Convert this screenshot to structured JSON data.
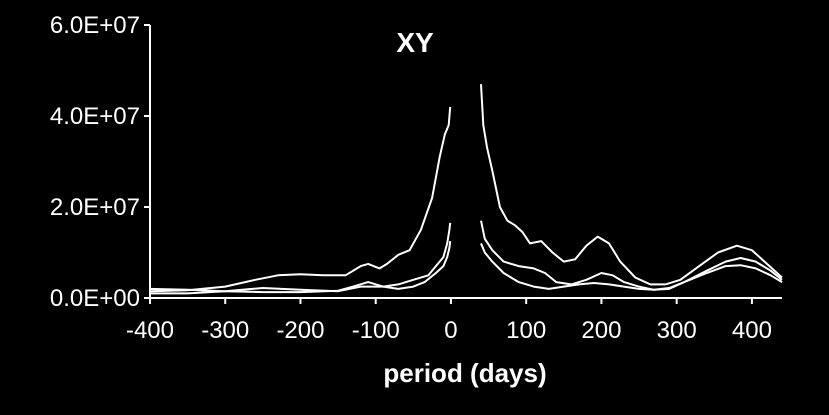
{
  "chart_data": {
    "type": "line",
    "title": "XY",
    "xlabel": "period (days)",
    "ylabel": "",
    "xlim": [
      -400,
      440
    ],
    "ylim": [
      0,
      60000000
    ],
    "x_ticks": [
      -400,
      -300,
      -200,
      -100,
      0,
      100,
      200,
      300,
      400
    ],
    "x_tick_labels": [
      "-400",
      "-300",
      "-200",
      "-100",
      "0",
      "100",
      "200",
      "300",
      "400"
    ],
    "y_ticks": [
      0,
      20000000,
      40000000,
      60000000
    ],
    "y_tick_labels": [
      "0.0E+00",
      "2.0E+07",
      "4.0E+07",
      "6.0E+07"
    ],
    "grid": false,
    "line_color": "#ffffff",
    "background": "#000000",
    "series": [
      {
        "segments": [
          [
            [
              -400,
              1500000
            ],
            [
              -350,
              1700000
            ],
            [
              -300,
              2500000
            ],
            [
              -260,
              4000000
            ],
            [
              -230,
              5000000
            ],
            [
              -200,
              5200000
            ],
            [
              -170,
              5000000
            ],
            [
              -140,
              5000000
            ],
            [
              -120,
              7000000
            ],
            [
              -110,
              7500000
            ],
            [
              -95,
              6500000
            ],
            [
              -85,
              7500000
            ],
            [
              -70,
              9500000
            ],
            [
              -55,
              10500000
            ],
            [
              -40,
              15000000
            ],
            [
              -25,
              22000000
            ],
            [
              -15,
              31000000
            ],
            [
              -8,
              36000000
            ],
            [
              -3,
              38000000
            ],
            [
              -1,
              42000000
            ]
          ],
          [
            [
              40,
              47000000
            ],
            [
              43,
              38000000
            ],
            [
              48,
              33000000
            ],
            [
              55,
              28000000
            ],
            [
              65,
              20000000
            ],
            [
              75,
              17000000
            ],
            [
              85,
              16000000
            ],
            [
              95,
              14500000
            ],
            [
              105,
              12000000
            ],
            [
              120,
              12500000
            ],
            [
              135,
              10000000
            ],
            [
              150,
              8000000
            ],
            [
              165,
              8500000
            ],
            [
              180,
              11500000
            ],
            [
              195,
              13500000
            ],
            [
              210,
              12000000
            ],
            [
              225,
              8000000
            ],
            [
              245,
              4500000
            ],
            [
              265,
              3000000
            ],
            [
              285,
              3000000
            ],
            [
              305,
              4000000
            ],
            [
              330,
              7000000
            ],
            [
              355,
              10000000
            ],
            [
              380,
              11500000
            ],
            [
              400,
              10500000
            ],
            [
              420,
              7500000
            ],
            [
              440,
              4500000
            ]
          ]
        ]
      },
      {
        "segments": [
          [
            [
              -400,
              1000000
            ],
            [
              -350,
              1000000
            ],
            [
              -300,
              1500000
            ],
            [
              -250,
              2200000
            ],
            [
              -200,
              1800000
            ],
            [
              -150,
              1500000
            ],
            [
              -120,
              2500000
            ],
            [
              -90,
              2500000
            ],
            [
              -70,
              3000000
            ],
            [
              -50,
              4000000
            ],
            [
              -30,
              5000000
            ],
            [
              -20,
              7000000
            ],
            [
              -10,
              9000000
            ],
            [
              -5,
              12000000
            ],
            [
              -2,
              15000000
            ],
            [
              -1,
              16500000
            ]
          ],
          [
            [
              40,
              17000000
            ],
            [
              45,
              13000000
            ],
            [
              55,
              10500000
            ],
            [
              70,
              8000000
            ],
            [
              90,
              7000000
            ],
            [
              110,
              6500000
            ],
            [
              125,
              5500000
            ],
            [
              140,
              3500000
            ],
            [
              160,
              3000000
            ],
            [
              180,
              4000000
            ],
            [
              200,
              5500000
            ],
            [
              215,
              5000000
            ],
            [
              230,
              3500000
            ],
            [
              250,
              2500000
            ],
            [
              270,
              1800000
            ],
            [
              290,
              2000000
            ],
            [
              310,
              3500000
            ],
            [
              340,
              6000000
            ],
            [
              365,
              8000000
            ],
            [
              385,
              8800000
            ],
            [
              405,
              8000000
            ],
            [
              425,
              6000000
            ],
            [
              440,
              4000000
            ]
          ]
        ]
      },
      {
        "segments": [
          [
            [
              -400,
              2000000
            ],
            [
              -350,
              1800000
            ],
            [
              -300,
              1500000
            ],
            [
              -250,
              1300000
            ],
            [
              -200,
              1300000
            ],
            [
              -150,
              1600000
            ],
            [
              -130,
              2500000
            ],
            [
              -110,
              3500000
            ],
            [
              -90,
              2500000
            ],
            [
              -70,
              2000000
            ],
            [
              -50,
              2500000
            ],
            [
              -35,
              3500000
            ],
            [
              -20,
              5500000
            ],
            [
              -10,
              7000000
            ],
            [
              -5,
              9000000
            ],
            [
              -2,
              11000000
            ],
            [
              -1,
              12500000
            ]
          ],
          [
            [
              40,
              12000000
            ],
            [
              45,
              10000000
            ],
            [
              55,
              8000000
            ],
            [
              70,
              5500000
            ],
            [
              90,
              3500000
            ],
            [
              110,
              2500000
            ],
            [
              130,
              2000000
            ],
            [
              150,
              2500000
            ],
            [
              170,
              3000000
            ],
            [
              190,
              3300000
            ],
            [
              210,
              3000000
            ],
            [
              230,
              2500000
            ],
            [
              250,
              2000000
            ],
            [
              270,
              1800000
            ],
            [
              290,
              2200000
            ],
            [
              310,
              3500000
            ],
            [
              340,
              5500000
            ],
            [
              365,
              7000000
            ],
            [
              385,
              7200000
            ],
            [
              405,
              6500000
            ],
            [
              425,
              5000000
            ],
            [
              440,
              3500000
            ]
          ]
        ]
      }
    ]
  }
}
